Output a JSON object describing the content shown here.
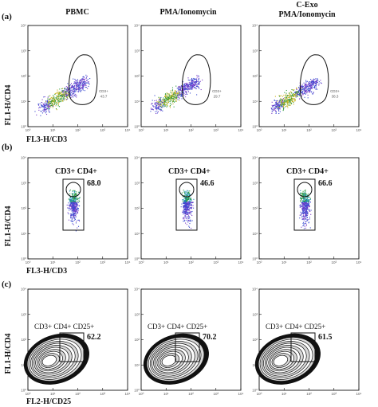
{
  "figure": {
    "column_headers": [
      {
        "lines": [
          "PBMC"
        ]
      },
      {
        "lines": [
          "PMA/Ionomycin"
        ]
      },
      {
        "lines": [
          "C-Exo",
          "PMA/Ionomycin"
        ]
      }
    ],
    "rows": [
      {
        "panel_label": "(a)",
        "ylabel": "FL1-H/CD4",
        "xlabel": "FL3-H/CD3"
      },
      {
        "panel_label": "(b)",
        "ylabel": "FL1-H/CD4",
        "xlabel": "FL3-H/CD3"
      },
      {
        "panel_label": "(c)",
        "ylabel": "FL1-H/CD4",
        "xlabel": "FL2-H/CD25"
      }
    ]
  },
  "chart_data": [
    {
      "type": "scatter",
      "panel": "a",
      "column": "PBMC",
      "xlabel": "FL3-H/CD3",
      "ylabel": "FL1-H/CD4",
      "xscale": "log",
      "yscale": "log",
      "xlim": [
        1,
        10000
      ],
      "ylim": [
        1,
        10000
      ],
      "tick_labels": [
        "10^0",
        "10^1",
        "10^2",
        "10^3",
        "10^4"
      ],
      "gate": {
        "label": "CD3+",
        "value": "43.7"
      }
    },
    {
      "type": "scatter",
      "panel": "a",
      "column": "PMA/Ionomycin",
      "xlabel": "FL3-H/CD3",
      "ylabel": "FL1-H/CD4",
      "xscale": "log",
      "yscale": "log",
      "xlim": [
        1,
        10000
      ],
      "ylim": [
        1,
        10000
      ],
      "tick_labels": [
        "10^0",
        "10^1",
        "10^2",
        "10^3",
        "10^4"
      ],
      "gate": {
        "label": "CD3+",
        "value": "29.7"
      }
    },
    {
      "type": "scatter",
      "panel": "a",
      "column": "C-Exo PMA/Ionomycin",
      "xlabel": "FL3-H/CD3",
      "ylabel": "FL1-H/CD4",
      "xscale": "log",
      "yscale": "log",
      "xlim": [
        1,
        10000
      ],
      "ylim": [
        1,
        10000
      ],
      "tick_labels": [
        "10^0",
        "10^1",
        "10^2",
        "10^3",
        "10^4"
      ],
      "gate": {
        "label": "CD3+",
        "value": "38.3"
      }
    },
    {
      "type": "scatter",
      "panel": "b",
      "column": "PBMC",
      "xlabel": "FL3-H/CD3",
      "ylabel": "FL1-H/CD4",
      "xscale": "log",
      "yscale": "log",
      "xlim": [
        1,
        10000
      ],
      "ylim": [
        1,
        10000
      ],
      "tick_labels": [
        "10^0",
        "10^1",
        "10^2",
        "10^3",
        "10^4"
      ],
      "gate": {
        "label": "CD3+ CD4+",
        "value": "68.0"
      }
    },
    {
      "type": "scatter",
      "panel": "b",
      "column": "PMA/Ionomycin",
      "xlabel": "FL3-H/CD3",
      "ylabel": "FL1-H/CD4",
      "xscale": "log",
      "yscale": "log",
      "xlim": [
        1,
        10000
      ],
      "ylim": [
        1,
        10000
      ],
      "tick_labels": [
        "10^0",
        "10^1",
        "10^2",
        "10^3",
        "10^4"
      ],
      "gate": {
        "label": "CD3+ CD4+",
        "value": "46.6"
      }
    },
    {
      "type": "scatter",
      "panel": "b",
      "column": "C-Exo PMA/Ionomycin",
      "xlabel": "FL3-H/CD3",
      "ylabel": "FL1-H/CD4",
      "xscale": "log",
      "yscale": "log",
      "xlim": [
        1,
        10000
      ],
      "ylim": [
        1,
        10000
      ],
      "tick_labels": [
        "10^0",
        "10^1",
        "10^2",
        "10^3",
        "10^4"
      ],
      "gate": {
        "label": "CD3+ CD4+",
        "value": "66.6"
      }
    },
    {
      "type": "contour",
      "panel": "c",
      "column": "PBMC",
      "xlabel": "FL2-H/CD25",
      "ylabel": "FL1-H/CD4",
      "xscale": "log",
      "yscale": "log",
      "xlim": [
        1,
        10000
      ],
      "ylim": [
        1,
        10000
      ],
      "tick_labels": [
        "10^0",
        "10^1",
        "10^2",
        "10^3",
        "10^4"
      ],
      "gate": {
        "label": "CD3+ CD4+ CD25+",
        "value": "62.2"
      }
    },
    {
      "type": "contour",
      "panel": "c",
      "column": "PMA/Ionomycin",
      "xlabel": "FL2-H/CD25",
      "ylabel": "FL1-H/CD4",
      "xscale": "log",
      "yscale": "log",
      "xlim": [
        1,
        10000
      ],
      "ylim": [
        1,
        10000
      ],
      "tick_labels": [
        "10^0",
        "10^1",
        "10^2",
        "10^3",
        "10^4"
      ],
      "gate": {
        "label": "CD3+ CD4+ CD25+",
        "value": "70.2"
      }
    },
    {
      "type": "contour",
      "panel": "c",
      "column": "C-Exo PMA/Ionomycin",
      "xlabel": "FL2-H/CD25",
      "ylabel": "FL1-H/CD4",
      "xscale": "log",
      "yscale": "log",
      "xlim": [
        1,
        10000
      ],
      "ylim": [
        1,
        10000
      ],
      "tick_labels": [
        "10^0",
        "10^1",
        "10^2",
        "10^3",
        "10^4"
      ],
      "gate": {
        "label": "CD3+ CD4+ CD25+",
        "value": "61.5"
      }
    }
  ]
}
